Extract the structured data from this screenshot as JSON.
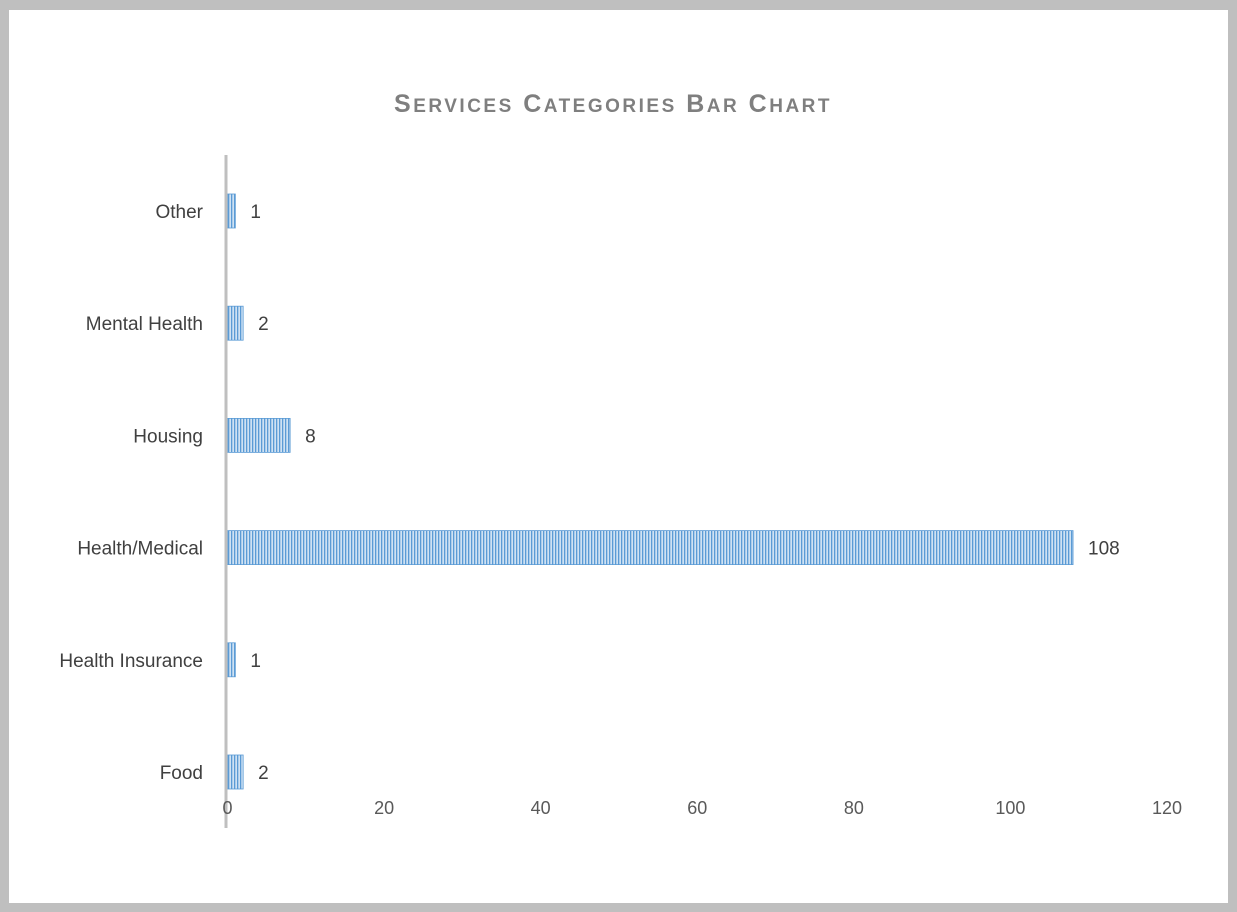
{
  "chart_data": {
    "type": "bar",
    "orientation": "horizontal",
    "title": "Services Categories Bar Chart",
    "categories": [
      "Other",
      "Mental Health",
      "Housing",
      "Health/Medical",
      "Health Insurance",
      "Food"
    ],
    "values": [
      1,
      2,
      8,
      108,
      1,
      2
    ],
    "data_labels": [
      "1",
      "2",
      "8",
      "108",
      "1",
      "2"
    ],
    "xlim": [
      0,
      120
    ],
    "x_ticks": [
      0,
      20,
      40,
      60,
      80,
      100,
      120
    ],
    "x_tick_labels": [
      "0",
      "20",
      "40",
      "60",
      "80",
      "100",
      "120"
    ],
    "grid": false,
    "legend": "none",
    "colors": {
      "bar_fill": "#9dc3e6",
      "bar_stripe": "#5b9bd5",
      "axis": "#bfbfbf",
      "title": "#7f7f7f",
      "frame": "#bfbfbf"
    }
  }
}
